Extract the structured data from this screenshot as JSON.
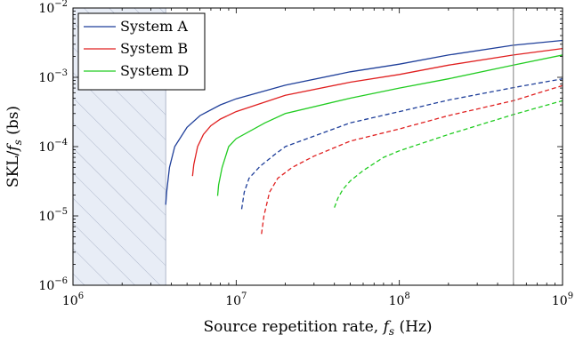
{
  "chart_data": {
    "type": "line",
    "xscale": "log",
    "yscale": "log",
    "xlim": [
      1000000,
      1000000000
    ],
    "ylim": [
      1e-06,
      0.01
    ],
    "x_ticks": [
      {
        "value": 1000000,
        "base": "10",
        "exp": "6"
      },
      {
        "value": 10000000,
        "base": "10",
        "exp": "7"
      },
      {
        "value": 100000000,
        "base": "10",
        "exp": "8"
      },
      {
        "value": 1000000000,
        "base": "10",
        "exp": "9"
      }
    ],
    "y_ticks": [
      {
        "value": 1e-06,
        "base": "10",
        "exp": "−6"
      },
      {
        "value": 1e-05,
        "base": "10",
        "exp": "−5"
      },
      {
        "value": 0.0001,
        "base": "10",
        "exp": "−4"
      },
      {
        "value": 0.001,
        "base": "10",
        "exp": "−3"
      },
      {
        "value": 0.01,
        "base": "10",
        "exp": "−2"
      }
    ],
    "xlabel": {
      "main": "Source repetition rate, ",
      "var": "f",
      "sub": "s",
      "unit": " (Hz)"
    },
    "ylabel": {
      "main": "SKL/",
      "var": "f",
      "sub": "s",
      "unit": " (bs)"
    },
    "shaded_region": {
      "x_from": 1000000,
      "x_to": 3700000,
      "fill": "#e8edf6",
      "hatch": "#9ea8bf"
    },
    "vertical_line": {
      "x": 500000000,
      "color": "#808080"
    },
    "legend": {
      "position": "top-left"
    },
    "series": [
      {
        "name": "System A",
        "color": "#1f3f9a",
        "dash": false,
        "points": [
          [
            3700000,
            1.45e-05
          ],
          [
            3750000,
            2.2e-05
          ],
          [
            3900000,
            5e-05
          ],
          [
            4200000,
            0.0001
          ],
          [
            5000000,
            0.00019
          ],
          [
            6000000,
            0.00028
          ],
          [
            8000000,
            0.0004
          ],
          [
            10000000,
            0.00049
          ],
          [
            20000000,
            0.00077
          ],
          [
            50000000,
            0.0012
          ],
          [
            100000000,
            0.00155
          ],
          [
            200000000,
            0.0021
          ],
          [
            500000000,
            0.0029
          ],
          [
            1000000000,
            0.0034
          ]
        ]
      },
      {
        "name": "System B",
        "color": "#e02020",
        "dash": false,
        "points": [
          [
            5400000,
            3.75e-05
          ],
          [
            5500000,
            5.5e-05
          ],
          [
            5800000,
            0.0001
          ],
          [
            6300000,
            0.00015
          ],
          [
            7000000,
            0.0002
          ],
          [
            8000000,
            0.00025
          ],
          [
            10000000,
            0.00032
          ],
          [
            20000000,
            0.00055
          ],
          [
            50000000,
            0.00085
          ],
          [
            100000000,
            0.0011
          ],
          [
            200000000,
            0.0015
          ],
          [
            500000000,
            0.0021
          ],
          [
            1000000000,
            0.0026
          ]
        ]
      },
      {
        "name": "System D",
        "color": "#22cc22",
        "dash": false,
        "points": [
          [
            7700000,
            1.95e-05
          ],
          [
            7800000,
            2.8e-05
          ],
          [
            8200000,
            5e-05
          ],
          [
            9000000,
            0.0001
          ],
          [
            10000000,
            0.00013
          ],
          [
            15000000,
            0.00022
          ],
          [
            20000000,
            0.0003
          ],
          [
            50000000,
            0.0005
          ],
          [
            100000000,
            0.0007
          ],
          [
            200000000,
            0.00095
          ],
          [
            500000000,
            0.0015
          ],
          [
            1000000000,
            0.0021
          ]
        ]
      },
      {
        "name": "",
        "color": "#1f3f9a",
        "dash": true,
        "points": [
          [
            10800000,
            1.25e-05
          ],
          [
            11200000,
            2.2e-05
          ],
          [
            12000000,
            3.5e-05
          ],
          [
            14000000,
            5.2e-05
          ],
          [
            17000000,
            7.5e-05
          ],
          [
            20000000,
            0.0001
          ],
          [
            50000000,
            0.00022
          ],
          [
            100000000,
            0.00032
          ],
          [
            200000000,
            0.00047
          ],
          [
            500000000,
            0.00071
          ],
          [
            1000000000,
            0.00095
          ]
        ]
      },
      {
        "name": "",
        "color": "#e02020",
        "dash": true,
        "points": [
          [
            14300000,
            5.5e-06
          ],
          [
            14800000,
            1e-05
          ],
          [
            16000000,
            2.2e-05
          ],
          [
            18000000,
            3.5e-05
          ],
          [
            22000000,
            5e-05
          ],
          [
            30000000,
            7.3e-05
          ],
          [
            50000000,
            0.00012
          ],
          [
            100000000,
            0.00018
          ],
          [
            200000000,
            0.00028
          ],
          [
            500000000,
            0.00046
          ],
          [
            1000000000,
            0.00076
          ]
        ]
      },
      {
        "name": "",
        "color": "#22cc22",
        "dash": true,
        "points": [
          [
            40000000,
            1.32e-05
          ],
          [
            42000000,
            1.8e-05
          ],
          [
            45000000,
            2.4e-05
          ],
          [
            50000000,
            3.2e-05
          ],
          [
            60000000,
            4.5e-05
          ],
          [
            80000000,
            7e-05
          ],
          [
            100000000,
            8.7e-05
          ],
          [
            200000000,
            0.00015
          ],
          [
            500000000,
            0.00029
          ],
          [
            1000000000,
            0.00046
          ]
        ]
      }
    ]
  }
}
